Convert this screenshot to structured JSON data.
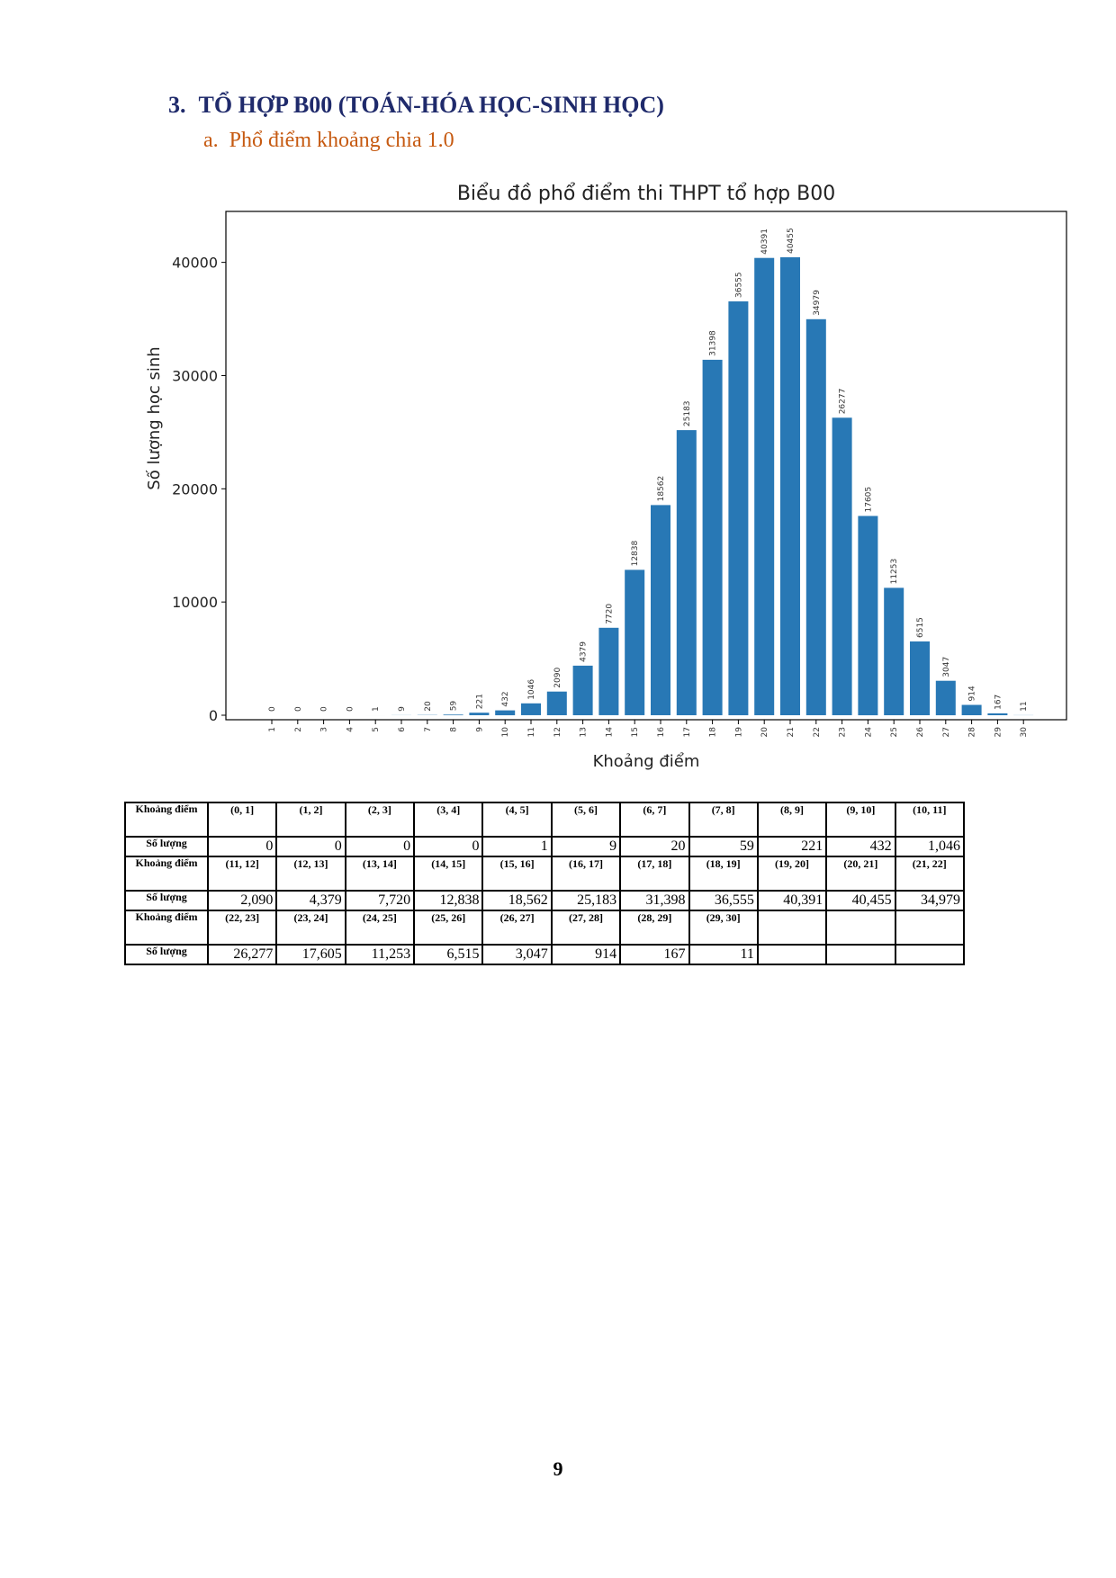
{
  "section": {
    "number": "3.",
    "title": "TỔ HỢP B00 (TOÁN-HÓA HỌC-SINH HỌC)"
  },
  "subsection": {
    "letter": "a.",
    "title": "Phổ điểm khoảng chia 1.0"
  },
  "chart_data": {
    "type": "bar",
    "title": "Biểu đồ phổ điểm thi THPT tổ hợp B00",
    "xlabel": "Khoảng điểm",
    "ylabel": "Số lượng học sinh",
    "categories": [
      "1",
      "2",
      "3",
      "4",
      "5",
      "6",
      "7",
      "8",
      "9",
      "10",
      "11",
      "12",
      "13",
      "14",
      "15",
      "16",
      "17",
      "18",
      "19",
      "20",
      "21",
      "22",
      "23",
      "24",
      "25",
      "26",
      "27",
      "28",
      "29",
      "30"
    ],
    "values": [
      0,
      0,
      0,
      0,
      1,
      9,
      20,
      59,
      221,
      432,
      1046,
      2090,
      4379,
      7720,
      12838,
      18562,
      25183,
      31398,
      36555,
      40391,
      40455,
      34979,
      26277,
      17605,
      11253,
      6515,
      3047,
      914,
      167,
      11
    ],
    "yticks": [
      "0",
      "10000",
      "20000",
      "30000",
      "40000"
    ],
    "ytick_values": [
      0,
      10000,
      20000,
      30000,
      40000
    ],
    "ylim": [
      0,
      44500
    ],
    "grid": false,
    "bar_color": "#2878b5"
  },
  "table": {
    "range_label": "Khoảng điểm",
    "count_label": "Số lượng",
    "rows": [
      {
        "ranges": [
          "(0, 1]",
          "(1, 2]",
          "(2, 3]",
          "(3, 4]",
          "(4, 5]",
          "(5, 6]",
          "(6, 7]",
          "(7, 8]",
          "(8, 9]",
          "(9, 10]",
          "(10, 11]"
        ],
        "counts": [
          "0",
          "0",
          "0",
          "0",
          "1",
          "9",
          "20",
          "59",
          "221",
          "432",
          "1,046"
        ]
      },
      {
        "ranges": [
          "(11, 12]",
          "(12, 13]",
          "(13, 14]",
          "(14, 15]",
          "(15, 16]",
          "(16, 17]",
          "(17, 18]",
          "(18, 19]",
          "(19, 20]",
          "(20, 21]",
          "(21, 22]"
        ],
        "counts": [
          "2,090",
          "4,379",
          "7,720",
          "12,838",
          "18,562",
          "25,183",
          "31,398",
          "36,555",
          "40,391",
          "40,455",
          "34,979"
        ]
      },
      {
        "ranges": [
          "(22, 23]",
          "(23, 24]",
          "(24, 25]",
          "(25, 26]",
          "(26, 27]",
          "(27, 28]",
          "(28, 29]",
          "(29, 30]",
          "",
          "",
          ""
        ],
        "counts": [
          "26,277",
          "17,605",
          "11,253",
          "6,515",
          "3,047",
          "914",
          "167",
          "11",
          "",
          "",
          ""
        ]
      }
    ]
  },
  "page_number": "9"
}
